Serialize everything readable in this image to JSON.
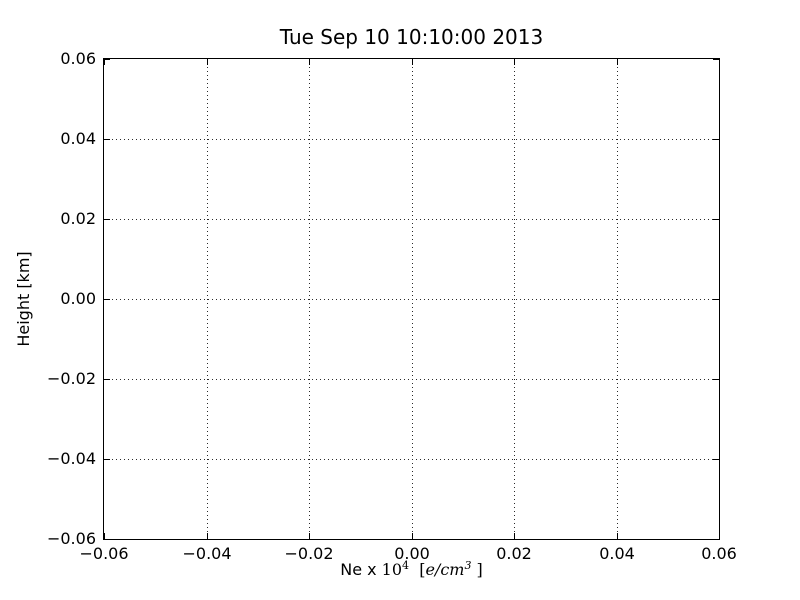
{
  "figure": {
    "background_color": "#ffffff",
    "frame_color": "#000000",
    "grid_color": "#2a2a2a",
    "text_color": "#000000"
  },
  "chart_data": {
    "type": "line",
    "title": "Tue Sep 10 10:10:00 2013",
    "xlabel": "Ne x 10⁴  [e/cm³ ]",
    "ylabel": "Height [km]",
    "xlim": [
      -0.06,
      0.06
    ],
    "ylim": [
      -0.06,
      0.06
    ],
    "xtick_values": [
      -0.06,
      -0.04,
      -0.02,
      0.0,
      0.02,
      0.04,
      0.06
    ],
    "xtick_labels": [
      "−0.06",
      "−0.04",
      "−0.02",
      "0.00",
      "0.02",
      "0.04",
      "0.06"
    ],
    "ytick_values": [
      -0.06,
      -0.04,
      -0.02,
      0.0,
      0.02,
      0.04,
      0.06
    ],
    "ytick_labels": [
      "−0.06",
      "−0.04",
      "−0.02",
      "0.00",
      "0.02",
      "0.04",
      "0.06"
    ],
    "grid": true,
    "grid_style": "dotted",
    "legend": null,
    "series": []
  },
  "xlabel_parts": {
    "prefix": "Ne x ",
    "base": "10",
    "exponent": "4",
    "mid": "  [",
    "math_text": "e/cm",
    "math_exponent": "3",
    "suffix": " ]"
  }
}
